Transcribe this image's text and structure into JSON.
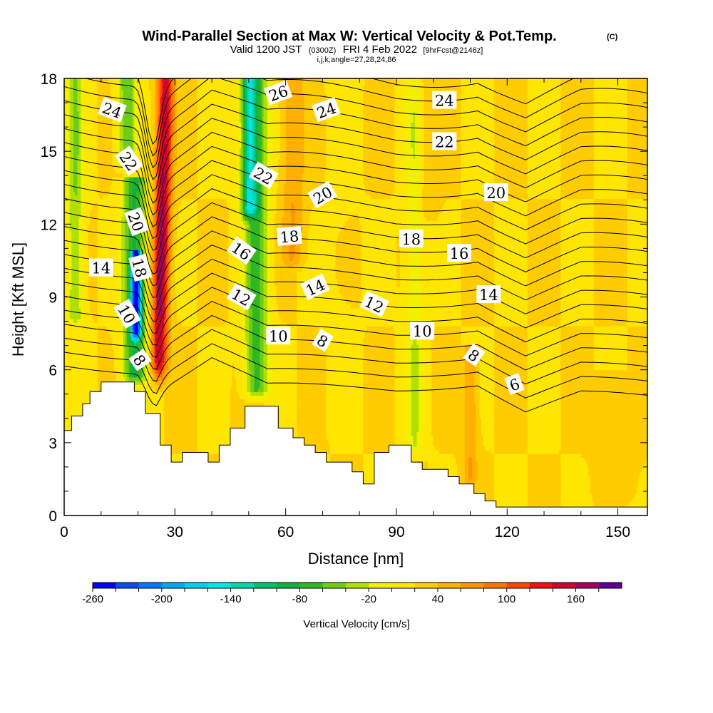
{
  "chart_data": {
    "type": "heatmap",
    "title": "Wind-Parallel Section at Max W: Vertical Velocity & Pot.Temp.",
    "title_mark": "(C)",
    "subtitle": {
      "valid": "Valid 1200 JST",
      "zulu": "(0300Z)",
      "date": "FRI 4 Feb 2022",
      "fcst": "[9hrFcst@2146z]",
      "indices": "i,j,k,angle=27,28,24,86"
    },
    "xlabel": "Distance [nm]",
    "ylabel": "Height [Kft MSL]",
    "xlim": [
      0,
      158
    ],
    "ylim": [
      0,
      18
    ],
    "x_ticks": [
      "0",
      "30",
      "60",
      "90",
      "120",
      "150"
    ],
    "y_ticks": [
      "0",
      "3",
      "6",
      "9",
      "12",
      "15",
      "18"
    ],
    "grid": false,
    "colorbar": {
      "label": "Vertical Velocity [cm/s]",
      "tick_labels": [
        "-260",
        "-200",
        "-140",
        "-80",
        "-20",
        "40",
        "100",
        "160"
      ],
      "levels": [
        -260,
        -240,
        -220,
        -200,
        -180,
        -160,
        -140,
        -120,
        -100,
        -80,
        -60,
        -40,
        -20,
        0,
        20,
        40,
        60,
        80,
        100,
        120,
        140,
        160,
        180
      ],
      "colors": [
        "#0000ff",
        "#0a4cf0",
        "#0a78f5",
        "#00a8f0",
        "#00d0f0",
        "#00e6e6",
        "#00d8a8",
        "#00c070",
        "#10b040",
        "#30b820",
        "#70cc18",
        "#b0e000",
        "#f2f000",
        "#ffe600",
        "#ffcc00",
        "#ffb000",
        "#ff9400",
        "#ff7400",
        "#ff4400",
        "#f01010",
        "#d00030",
        "#a00060",
        "#600090"
      ]
    },
    "terrain_kft": [
      [
        0,
        3.5
      ],
      [
        2,
        3.5
      ],
      [
        2,
        4.1
      ],
      [
        5,
        4.1
      ],
      [
        5,
        4.6
      ],
      [
        7,
        4.6
      ],
      [
        7,
        5.1
      ],
      [
        10,
        5.1
      ],
      [
        10,
        5.5
      ],
      [
        19,
        5.5
      ],
      [
        19,
        5.1
      ],
      [
        22,
        5.1
      ],
      [
        22,
        4.2
      ],
      [
        26,
        4.2
      ],
      [
        26,
        2.9
      ],
      [
        29,
        2.9
      ],
      [
        29,
        2.2
      ],
      [
        32,
        2.2
      ],
      [
        32,
        2.6
      ],
      [
        39,
        2.6
      ],
      [
        39,
        2.2
      ],
      [
        42,
        2.2
      ],
      [
        42,
        2.9
      ],
      [
        45,
        2.9
      ],
      [
        45,
        3.6
      ],
      [
        49,
        3.6
      ],
      [
        49,
        4.5
      ],
      [
        58,
        4.5
      ],
      [
        58,
        3.6
      ],
      [
        62,
        3.6
      ],
      [
        62,
        3.2
      ],
      [
        65,
        3.2
      ],
      [
        65,
        2.9
      ],
      [
        68,
        2.9
      ],
      [
        68,
        2.6
      ],
      [
        71,
        2.6
      ],
      [
        71,
        2.2
      ],
      [
        78,
        2.2
      ],
      [
        78,
        1.8
      ],
      [
        81,
        1.8
      ],
      [
        81,
        1.3
      ],
      [
        84,
        1.3
      ],
      [
        84,
        2.6
      ],
      [
        88,
        2.6
      ],
      [
        88,
        2.9
      ],
      [
        94,
        2.9
      ],
      [
        94,
        2.2
      ],
      [
        97,
        2.2
      ],
      [
        97,
        1.9
      ],
      [
        104,
        1.9
      ],
      [
        104,
        1.6
      ],
      [
        107,
        1.6
      ],
      [
        107,
        1.3
      ],
      [
        111,
        1.3
      ],
      [
        111,
        0.9
      ],
      [
        114,
        0.9
      ],
      [
        114,
        0.6
      ],
      [
        117,
        0.6
      ],
      [
        117,
        0.35
      ],
      [
        158,
        0.35
      ],
      [
        158,
        0.8
      ]
    ],
    "background_w": 20,
    "w_features": [
      {
        "x": 3,
        "z1": 7.6,
        "z2": 18,
        "w": -40,
        "hw": 2.2
      },
      {
        "x": 19,
        "z1": 5.2,
        "z2": 14,
        "w": -85,
        "hw": 3.2
      },
      {
        "x": 19.5,
        "z1": 7.0,
        "z2": 11,
        "w": -160,
        "hw": 1.5
      },
      {
        "x": 17,
        "z1": 14,
        "z2": 18,
        "w": -60,
        "hw": 2.5
      },
      {
        "x": 52,
        "z1": 4.6,
        "z2": 18,
        "w": -70,
        "hw": 3.2
      },
      {
        "x": 50,
        "z1": 12,
        "z2": 18,
        "w": -90,
        "hw": 2.0
      },
      {
        "x": 75,
        "z1": 3.0,
        "z2": 18,
        "w": 15,
        "hw": 4.0
      },
      {
        "x": 95,
        "z1": 2.3,
        "z2": 18,
        "w": -20,
        "hw": 2.5
      },
      {
        "x": 110,
        "z1": 1.0,
        "z2": 7,
        "w": 60,
        "hw": 2.0
      },
      {
        "x": 62,
        "z1": 10,
        "z2": 18,
        "w": 60,
        "hw": 3.0
      },
      {
        "x": 98,
        "z1": 12,
        "z2": 18,
        "w": 40,
        "hw": 3.0
      },
      {
        "x": 150,
        "z1": 0.4,
        "z2": 6,
        "w": 30,
        "hw": 6.0
      }
    ],
    "updraft": {
      "z_base": 5.1,
      "x_base": 25.5,
      "z_top": 18,
      "x_top": 27.5,
      "w_max": 170,
      "hw": 2.2
    },
    "theta_levels": [
      4,
      5,
      6,
      7,
      8,
      9,
      10,
      11,
      12,
      13,
      14,
      15,
      16,
      17,
      18,
      19,
      20,
      21,
      22,
      23,
      24,
      25,
      26
    ],
    "theta_base_z": [
      [
        0,
        6.2
      ],
      [
        20,
        6.0
      ],
      [
        25,
        5.2
      ],
      [
        40,
        6.5
      ],
      [
        55,
        5.3
      ],
      [
        90,
        5.2
      ],
      [
        112,
        5.5
      ],
      [
        125,
        4.3
      ],
      [
        140,
        5.0
      ],
      [
        158,
        4.8
      ]
    ],
    "contour_labels": [
      {
        "text": "24",
        "x": 13,
        "y": 16.7,
        "angle": 20
      },
      {
        "text": "22",
        "x": 17.5,
        "y": 14.6,
        "angle": 55
      },
      {
        "text": "20",
        "x": 19.5,
        "y": 12.1,
        "angle": 70
      },
      {
        "text": "18",
        "x": 20.5,
        "y": 10.2,
        "angle": 75
      },
      {
        "text": "14",
        "x": 10,
        "y": 10.2,
        "angle": 0
      },
      {
        "text": "10",
        "x": 17,
        "y": 8.3,
        "angle": 60
      },
      {
        "text": "8",
        "x": 20.5,
        "y": 6.4,
        "angle": 55
      },
      {
        "text": "26",
        "x": 58,
        "y": 17.4,
        "angle": -20
      },
      {
        "text": "24",
        "x": 71,
        "y": 16.7,
        "angle": -20
      },
      {
        "text": "22",
        "x": 54,
        "y": 14.0,
        "angle": 30
      },
      {
        "text": "20",
        "x": 70,
        "y": 13.2,
        "angle": -30
      },
      {
        "text": "16",
        "x": 48,
        "y": 10.9,
        "angle": 35
      },
      {
        "text": "18",
        "x": 61,
        "y": 11.5,
        "angle": -5
      },
      {
        "text": "12",
        "x": 48,
        "y": 9.0,
        "angle": 30
      },
      {
        "text": "14",
        "x": 68,
        "y": 9.4,
        "angle": -25
      },
      {
        "text": "10",
        "x": 58,
        "y": 7.4,
        "angle": 0
      },
      {
        "text": "8",
        "x": 70,
        "y": 7.2,
        "angle": 30
      },
      {
        "text": "12",
        "x": 84,
        "y": 8.7,
        "angle": 25
      },
      {
        "text": "10",
        "x": 97,
        "y": 7.6,
        "angle": 0
      },
      {
        "text": "18",
        "x": 94,
        "y": 11.4,
        "angle": 0
      },
      {
        "text": "16",
        "x": 107,
        "y": 10.8,
        "angle": 0
      },
      {
        "text": "24",
        "x": 103,
        "y": 17.1,
        "angle": 0
      },
      {
        "text": "22",
        "x": 103,
        "y": 15.4,
        "angle": 0
      },
      {
        "text": "20",
        "x": 117,
        "y": 13.3,
        "angle": 0
      },
      {
        "text": "14",
        "x": 115,
        "y": 9.1,
        "angle": 0
      },
      {
        "text": "8",
        "x": 111,
        "y": 6.6,
        "angle": 35
      },
      {
        "text": "6",
        "x": 122,
        "y": 5.4,
        "angle": -20
      }
    ]
  }
}
